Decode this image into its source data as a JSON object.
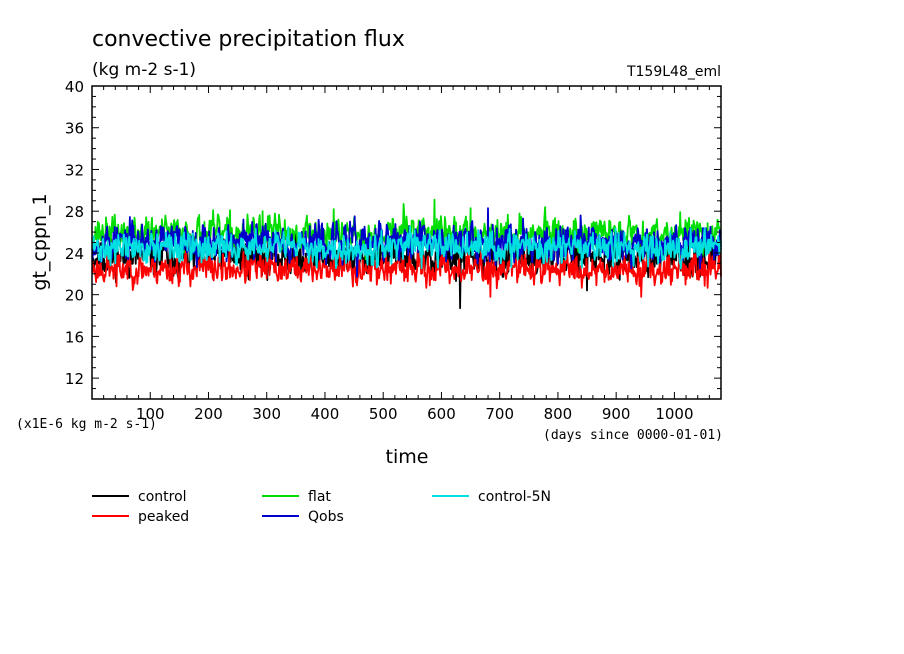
{
  "chart_data": {
    "type": "line",
    "title": "convective precipitation flux",
    "subtitle": "(kg m-2 s-1)",
    "run_label": "T159L48_eml",
    "xlabel": "time",
    "ylabel": "gt_cppn_1",
    "x_unit_note": "(days since 0000-01-01)",
    "y_unit_note": "(x1E-6 kg m-2 s-1)",
    "xlim": [
      0,
      1080
    ],
    "ylim": [
      10,
      40
    ],
    "x_ticks": [
      100,
      200,
      300,
      400,
      500,
      600,
      700,
      800,
      900,
      1000
    ],
    "y_ticks": [
      12,
      16,
      20,
      24,
      28,
      32,
      36,
      40
    ],
    "legend_position": "bottom-left",
    "series": [
      {
        "name": "control",
        "color": "#000000",
        "base": 23.6,
        "amp": 1.1,
        "seed": 11,
        "spikes": [
          [
            632,
            18.7
          ],
          [
            850,
            20.4
          ],
          [
            625,
            21.3
          ],
          [
            447,
            21.8
          ]
        ]
      },
      {
        "name": "peaked",
        "color": "#ff0000",
        "base": 22.5,
        "amp": 0.9,
        "seed": 23,
        "spikes": [
          [
            42,
            20.8
          ],
          [
            580,
            20.9
          ],
          [
            684,
            19.8
          ],
          [
            943,
            19.8
          ],
          [
            880,
            21.2
          ]
        ]
      },
      {
        "name": "flat",
        "color": "#00dd00",
        "base": 25.9,
        "amp": 1.0,
        "seed": 37,
        "spikes": [
          [
            588,
            29.1
          ],
          [
            535,
            28.7
          ],
          [
            415,
            28.2
          ],
          [
            293,
            28.0
          ],
          [
            650,
            28.3
          ],
          [
            1010,
            27.9
          ]
        ]
      },
      {
        "name": "Qobs",
        "color": "#0000cc",
        "base": 25.1,
        "amp": 1.1,
        "seed": 53,
        "spikes": [
          [
            680,
            28.3
          ],
          [
            455,
            21.7
          ],
          [
            740,
            27.3
          ],
          [
            260,
            27.2
          ]
        ]
      },
      {
        "name": "control-5N",
        "color": "#00e0e0",
        "base": 24.5,
        "amp": 0.9,
        "seed": 71,
        "spikes": [
          [
            40,
            23.0
          ],
          [
            720,
            22.6
          ]
        ]
      }
    ]
  }
}
